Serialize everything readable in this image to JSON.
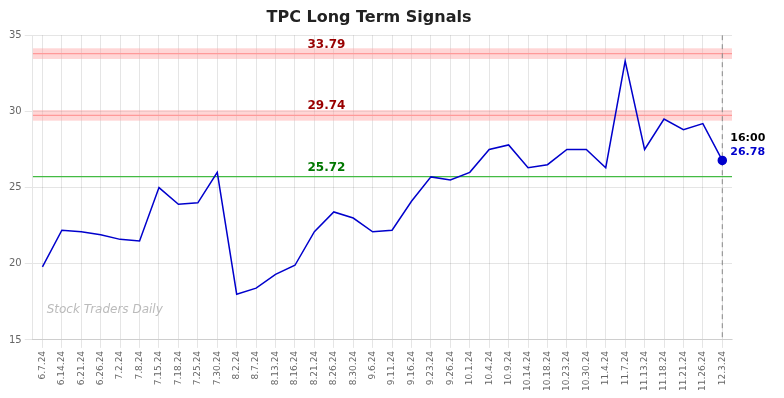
{
  "chart_data": {
    "type": "line",
    "title": "TPC Long Term Signals",
    "categories": [
      "6.7.24",
      "6.14.24",
      "6.21.24",
      "6.26.24",
      "7.2.24",
      "7.8.24",
      "7.15.24",
      "7.18.24",
      "7.25.24",
      "7.30.24",
      "8.2.24",
      "8.7.24",
      "8.13.24",
      "8.16.24",
      "8.21.24",
      "8.26.24",
      "8.30.24",
      "9.6.24",
      "9.11.24",
      "9.16.24",
      "9.23.24",
      "9.26.24",
      "10.1.24",
      "10.4.24",
      "10.9.24",
      "10.14.24",
      "10.18.24",
      "10.23.24",
      "10.30.24",
      "11.4.24",
      "11.7.24",
      "11.13.24",
      "11.18.24",
      "11.21.24",
      "11.26.24",
      "12.3.24"
    ],
    "values": [
      19.8,
      22.2,
      22.1,
      21.9,
      21.6,
      21.5,
      25.0,
      23.9,
      24.0,
      26.0,
      18.0,
      18.4,
      19.3,
      19.9,
      22.1,
      23.4,
      23.0,
      22.1,
      22.2,
      24.1,
      25.7,
      25.5,
      26.0,
      27.5,
      27.8,
      26.3,
      26.5,
      27.5,
      27.5,
      26.3,
      33.3,
      27.5,
      29.5,
      28.8,
      29.2,
      26.78
    ],
    "color": "#0000CC",
    "ylim": [
      15,
      35
    ],
    "yticks": [
      15,
      20,
      25,
      30,
      35
    ],
    "grid": true,
    "bands": [
      {
        "from": 29.39,
        "to": 30.09,
        "color": "#FF9999"
      },
      {
        "from": 33.44,
        "to": 34.14,
        "color": "#FF9999"
      }
    ],
    "hlines": [
      {
        "value": 25.72,
        "label": "25.72",
        "color": "#44BB44",
        "label_color": "#007700"
      },
      {
        "value": 29.74,
        "label": "29.74",
        "color": "#FF9999",
        "label_color": "#990000"
      },
      {
        "value": 33.79,
        "label": "33.79",
        "color": "#FF9999",
        "label_color": "#990000"
      }
    ],
    "vlines": [
      {
        "x": "12.3.24",
        "color": "#888888",
        "line_style": "dashed"
      }
    ],
    "annotations": [
      {
        "text": "16:00",
        "x": "12.3.24",
        "y": 26.78,
        "color": "#000000"
      },
      {
        "text": "26.78",
        "x": "12.3.24",
        "y": 26.78,
        "color": "#0000CC"
      }
    ],
    "watermark": {
      "text": "Stock Traders Daily",
      "color": "#BBBBBB"
    }
  }
}
